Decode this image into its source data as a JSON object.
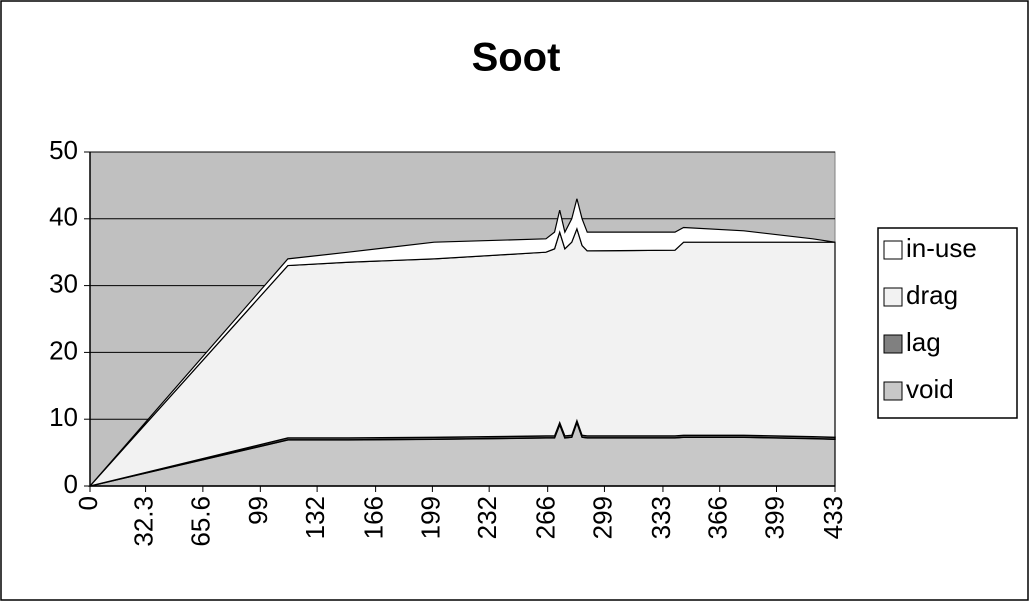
{
  "chart_data": {
    "type": "stacked-area",
    "title": "Soot",
    "x": [
      0,
      115,
      150,
      200,
      265,
      270,
      273,
      276,
      280,
      283,
      286,
      289,
      340,
      345,
      380,
      420,
      433
    ],
    "series": [
      {
        "name": "void",
        "color": "#c8c8c8",
        "values": [
          0,
          6.9,
          6.9,
          7,
          7.2,
          7.2,
          9.2,
          7.2,
          7.3,
          9.5,
          7.3,
          7.2,
          7.2,
          7.3,
          7.3,
          7.1,
          7
        ]
      },
      {
        "name": "lag",
        "color": "#808080",
        "values": [
          0,
          0.3,
          0.3,
          0.3,
          0.3,
          0.3,
          0.3,
          0.3,
          0.3,
          0.3,
          0.3,
          0.3,
          0.3,
          0.3,
          0.3,
          0.3,
          0.3
        ]
      },
      {
        "name": "drag",
        "color": "#f2f2f2",
        "values": [
          0,
          25.8,
          26.3,
          26.7,
          27.5,
          28,
          28.5,
          28,
          28.9,
          28.7,
          28.4,
          27.7,
          27.8,
          28.9,
          28.9,
          29.1,
          29.2
        ]
      },
      {
        "name": "in-use",
        "color": "#ffffff",
        "values": [
          0,
          1,
          1.5,
          2.5,
          2,
          2.5,
          3.3,
          2.5,
          3.5,
          4.5,
          4,
          2.8,
          2.7,
          2.2,
          1.7,
          0.5,
          0
        ]
      }
    ],
    "xlim": [
      0,
      433
    ],
    "xticks": [
      0,
      32.3,
      65.6,
      99,
      132,
      166,
      199,
      232,
      266,
      299,
      333,
      366,
      399,
      433
    ],
    "ylim": [
      0,
      50
    ],
    "yticks": [
      0,
      10,
      20,
      30,
      40,
      50
    ],
    "grid": true,
    "plot_background": "#c0c0c0",
    "legend": "right"
  }
}
